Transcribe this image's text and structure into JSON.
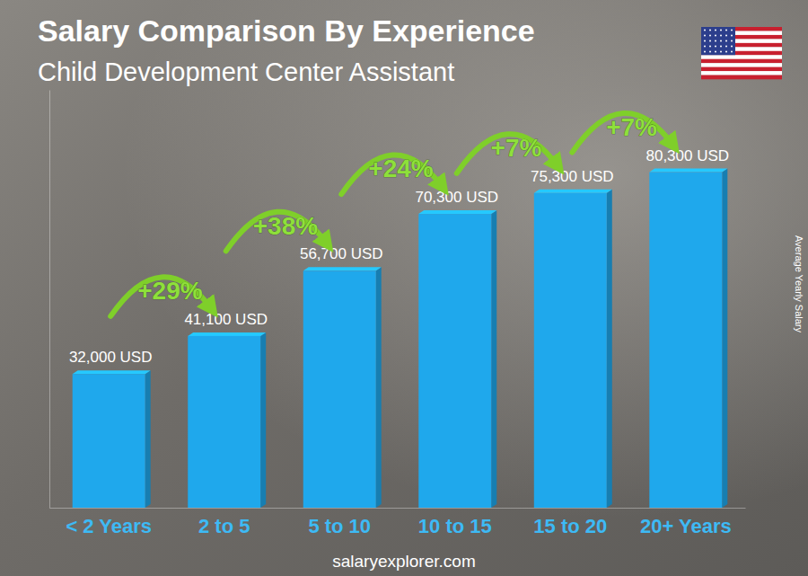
{
  "chart_data": {
    "type": "bar",
    "title": "Salary Comparison By Experience",
    "subtitle": "Child Development Center Assistant",
    "y_label": "Average Yearly Salary",
    "categories": [
      "< 2 Years",
      "2 to 5",
      "5 to 10",
      "10 to 15",
      "15 to 20",
      "20+ Years"
    ],
    "values": [
      32000,
      41100,
      56700,
      70300,
      75300,
      80300
    ],
    "value_labels": [
      "32,000 USD",
      "41,100 USD",
      "56,700 USD",
      "70,300 USD",
      "75,300 USD",
      "80,300 USD"
    ],
    "annotations": [
      "+29%",
      "+38%",
      "+24%",
      "+7%",
      "+7%"
    ],
    "source": "salaryexplorer.com",
    "color": "#1fa8ec",
    "ylim": [
      0,
      100000
    ],
    "data_labels": true,
    "tick_labels": "x",
    "grid": false
  }
}
